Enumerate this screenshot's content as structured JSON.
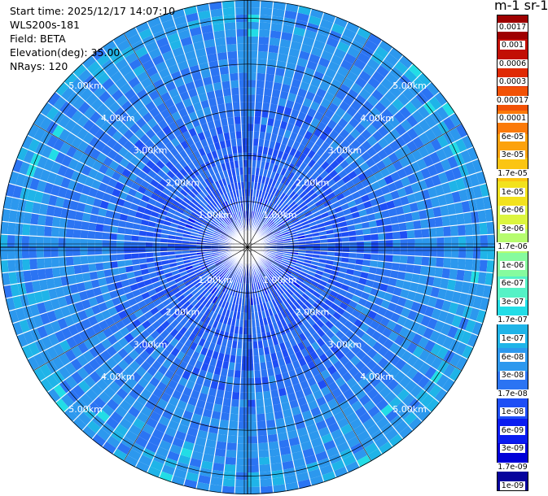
{
  "header": {
    "start_time": "Start time: 2025/12/17 14:07:10",
    "device": "WLS200s-181",
    "field": "Field: BETA",
    "elevation": "Elevation(deg): 35.00",
    "nrays": "NRays: 120"
  },
  "units_label": "m-1 sr-1",
  "chart_data": {
    "type": "heatmap",
    "projection": "polar-ppi",
    "field": "BETA",
    "elevation_deg": 35.0,
    "n_rays": 120,
    "range_max_km": 5.4,
    "range_rings_km": [
      1,
      2,
      3,
      4,
      5
    ],
    "ring_labels": [
      "1.00km",
      "2.00km",
      "3.00km",
      "4.00km",
      "5.00km"
    ],
    "dominant_value_near": "3e-08 to 1e-07",
    "colorbar": {
      "colors_low_to_high": [
        "#07049c",
        "#0000d8",
        "#0a1cf0",
        "#1e4ef5",
        "#2b74f3",
        "#2c98ee",
        "#1fb4e8",
        "#22dde6",
        "#55f2c6",
        "#86fb9e",
        "#b6fc6f",
        "#dcf53f",
        "#f2e21d",
        "#fbc512",
        "#fca20d",
        "#fb7a0a",
        "#f25206",
        "#e02a05",
        "#c20f05",
        "#9e0000"
      ],
      "tick_labels_top_to_bottom": [
        "0.0017",
        "0.001",
        "0.0006",
        "0.0003",
        "0.00017",
        "0.0001",
        "6e-05",
        "3e-05",
        "1.7e-05",
        "1e-05",
        "6e-06",
        "3e-06",
        "1.7e-06",
        "1e-06",
        "6e-07",
        "3e-07",
        "1.7e-07",
        "1e-07",
        "6e-08",
        "3e-08",
        "1.7e-08",
        "1e-08",
        "6e-09",
        "3e-09",
        "1.7e-09",
        "1e-09"
      ]
    }
  }
}
